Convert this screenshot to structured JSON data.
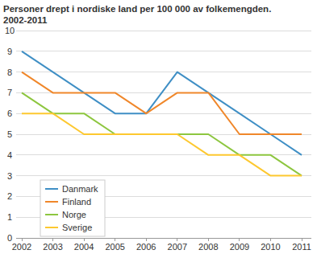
{
  "chart_data": {
    "type": "line",
    "title": "Personer drept i nordiske land per 100 000 av folkemengden.",
    "subtitle": "2002-2011",
    "categories": [
      "2002",
      "2003",
      "2004",
      "2005",
      "2006",
      "2007",
      "2008",
      "2009",
      "2010",
      "2011"
    ],
    "series": [
      {
        "name": "Danmark",
        "color": "#3f8fc5",
        "values": [
          9,
          8,
          7,
          6,
          6,
          8,
          7,
          6,
          5,
          4
        ]
      },
      {
        "name": "Finland",
        "color": "#f0872a",
        "values": [
          8,
          7,
          7,
          7,
          6,
          7,
          7,
          5,
          5,
          5
        ]
      },
      {
        "name": "Norge",
        "color": "#8dc63f",
        "values": [
          7,
          6,
          6,
          5,
          5,
          5,
          5,
          4,
          4,
          3
        ]
      },
      {
        "name": "Sverige",
        "color": "#fdc82f",
        "values": [
          6,
          6,
          5,
          5,
          5,
          5,
          4,
          4,
          3,
          3
        ]
      }
    ],
    "ylim": [
      0,
      10
    ],
    "yticks": [
      0,
      1,
      2,
      3,
      4,
      5,
      6,
      7,
      8,
      9,
      10
    ],
    "grid": true,
    "legend": "bottom-left"
  }
}
